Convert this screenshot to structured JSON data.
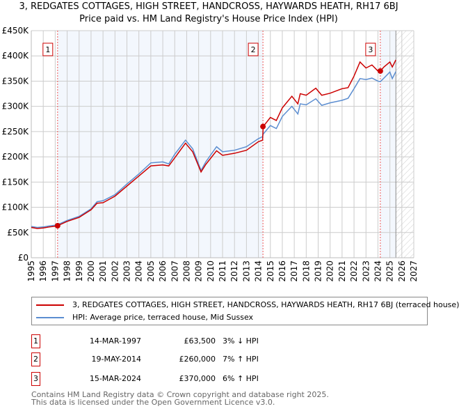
{
  "title": "3, REDGATES COTTAGES, HIGH STREET, HANDCROSS, HAYWARDS HEATH, RH17 6BJ",
  "subtitle": "Price paid vs. HM Land Registry's House Price Index (HPI)",
  "chart_data": {
    "type": "line",
    "title": "3, REDGATES COTTAGES, HIGH STREET, HANDCROSS, HAYWARDS HEATH, RH17 6BJ",
    "xlim": [
      1995,
      2027
    ],
    "ylim": [
      0,
      450000
    ],
    "yticks": [
      {
        "v": 0,
        "label": "£0"
      },
      {
        "v": 50000,
        "label": "£50K"
      },
      {
        "v": 100000,
        "label": "£100K"
      },
      {
        "v": 150000,
        "label": "£150K"
      },
      {
        "v": 200000,
        "label": "£200K"
      },
      {
        "v": 250000,
        "label": "£250K"
      },
      {
        "v": 300000,
        "label": "£300K"
      },
      {
        "v": 350000,
        "label": "£350K"
      },
      {
        "v": 400000,
        "label": "£400K"
      },
      {
        "v": 450000,
        "label": "£450K"
      }
    ],
    "xticks": [
      "1995",
      "1996",
      "1997",
      "1998",
      "1999",
      "2000",
      "2001",
      "2002",
      "2003",
      "2004",
      "2005",
      "2006",
      "2007",
      "2008",
      "2009",
      "2010",
      "2011",
      "2012",
      "2013",
      "2014",
      "2015",
      "2016",
      "2017",
      "2018",
      "2019",
      "2020",
      "2021",
      "2022",
      "2023",
      "2024",
      "2025",
      "2026",
      "2027"
    ],
    "grid": true,
    "forecast_start": 2025.5,
    "series": [
      {
        "name": "3, REDGATES COTTAGES, HIGH STREET, HANDCROSS, HAYWARDS HEATH, RH17 6BJ (terraced house)",
        "color": "#cc0000",
        "x": [
          1995,
          1995.5,
          1996,
          1996.5,
          1997,
          1997.2,
          1998,
          1999,
          2000,
          2000.5,
          2001,
          2002,
          2003,
          2004,
          2005,
          2006,
          2006.5,
          2007,
          2007.9,
          2008.5,
          2009.2,
          2009.6,
          2010.5,
          2011,
          2012,
          2013,
          2014,
          2014.35,
          2014.4,
          2015,
          2015.5,
          2016,
          2016.8,
          2017.3,
          2017.5,
          2018,
          2018.8,
          2019.3,
          2020,
          2021,
          2021.5,
          2022,
          2022.5,
          2023,
          2023.5,
          2024,
          2024.2,
          2024.5,
          2025,
          2025.2,
          2025.5
        ],
        "y": [
          60000,
          58000,
          59000,
          61000,
          62500,
          63500,
          72000,
          80000,
          95000,
          108000,
          109000,
          122000,
          142000,
          162000,
          182000,
          184000,
          182000,
          198000,
          227000,
          210000,
          170000,
          185000,
          212000,
          203000,
          207000,
          213000,
          230000,
          233000,
          260000,
          278000,
          272000,
          297000,
          320000,
          305000,
          325000,
          322000,
          336000,
          322000,
          326000,
          335000,
          337000,
          360000,
          388000,
          376000,
          382000,
          370000,
          370000,
          378000,
          388000,
          378000,
          392000
        ]
      },
      {
        "name": "HPI: Average price, terraced house, Mid Sussex",
        "color": "#5b8dd0",
        "x": [
          1995,
          1995.5,
          1996,
          1996.5,
          1997,
          1997.2,
          1998,
          1999,
          2000,
          2000.5,
          2001,
          2002,
          2003,
          2004,
          2005,
          2006,
          2006.5,
          2007,
          2007.9,
          2008.5,
          2009.2,
          2009.6,
          2010.5,
          2011,
          2012,
          2013,
          2014,
          2014.35,
          2014.4,
          2015,
          2015.5,
          2016,
          2016.8,
          2017.3,
          2017.5,
          2018,
          2018.8,
          2019.3,
          2020,
          2021,
          2021.5,
          2022,
          2022.5,
          2023,
          2023.5,
          2024,
          2024.2,
          2024.5,
          2025,
          2025.2,
          2025.5
        ],
        "y": [
          62000,
          60000,
          61000,
          63000,
          64500,
          65500,
          74000,
          82000,
          97000,
          111000,
          113000,
          125000,
          146000,
          166000,
          188000,
          190000,
          186000,
          205000,
          233000,
          216000,
          173000,
          190000,
          220000,
          210000,
          213000,
          220000,
          236000,
          240000,
          245000,
          262000,
          256000,
          280000,
          300000,
          285000,
          305000,
          303000,
          315000,
          302000,
          307000,
          312000,
          316000,
          335000,
          355000,
          353000,
          356000,
          350000,
          349000,
          356000,
          368000,
          355000,
          369000
        ]
      }
    ],
    "sales": [
      {
        "id": "1",
        "x": 1997.2,
        "y": 63500,
        "date": "14-MAR-1997",
        "price": "£63,500",
        "hpi": "3% ↓ HPI"
      },
      {
        "id": "2",
        "x": 2014.38,
        "y": 260000,
        "date": "19-MAY-2014",
        "price": "£260,000",
        "hpi": "7% ↑ HPI"
      },
      {
        "id": "3",
        "x": 2024.2,
        "y": 370000,
        "date": "15-MAR-2024",
        "price": "£370,000",
        "hpi": "6% ↑ HPI"
      }
    ],
    "shaded": [
      [
        1997.2,
        2014.38
      ],
      [
        2024.2,
        2025.5
      ]
    ],
    "legend_placement": "bottom"
  },
  "legend": {
    "red": "3, REDGATES COTTAGES, HIGH STREET, HANDCROSS, HAYWARDS HEATH, RH17 6BJ (terraced house)",
    "blue": "HPI: Average price, terraced house, Mid Sussex"
  },
  "footer": {
    "line1": "Contains HM Land Registry data © Crown copyright and database right 2025.",
    "line2": "This data is licensed under the Open Government Licence v3.0."
  }
}
